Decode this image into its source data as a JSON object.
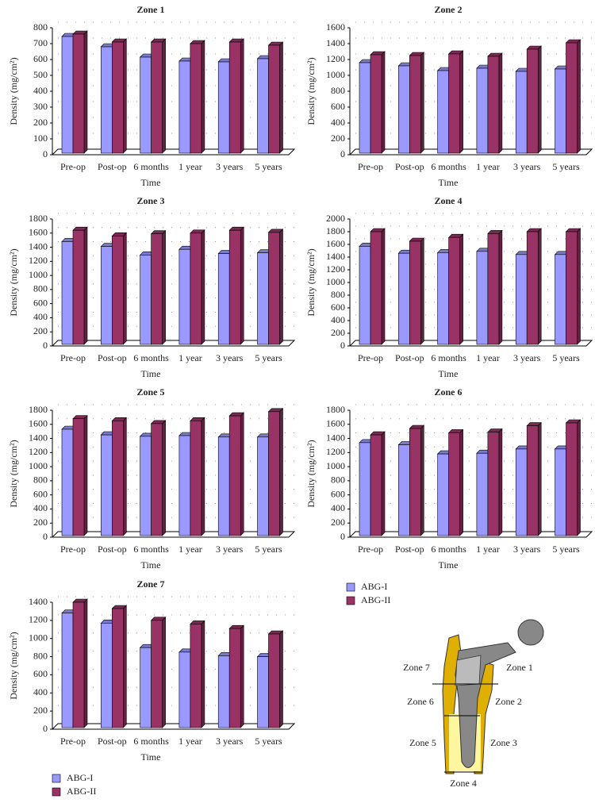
{
  "chart_data": [
    {
      "type": "bar3d",
      "title": "Zone 1",
      "x_label": "Time",
      "y_label": "Density (mg/cm²)",
      "categories": [
        "Pre-op",
        "Post-op",
        "6 months",
        "1 year",
        "3 years",
        "5 years"
      ],
      "series": [
        {
          "name": "ABG-I",
          "color": "#9999ff",
          "values": [
            745,
            680,
            615,
            590,
            585,
            605
          ]
        },
        {
          "name": "ABG-II",
          "color": "#993366",
          "values": [
            760,
            710,
            710,
            700,
            710,
            690
          ]
        }
      ],
      "ylim": [
        0,
        800
      ],
      "yticks": [
        0,
        100,
        200,
        300,
        400,
        500,
        600,
        700,
        800
      ],
      "grid": true
    },
    {
      "type": "bar3d",
      "title": "Zone 2",
      "x_label": "Time",
      "y_label": "Density (mg/cm²)",
      "categories": [
        "Pre-op",
        "Post-op",
        "6 months",
        "1 year",
        "3 years",
        "5 years"
      ],
      "series": [
        {
          "name": "ABG-I",
          "color": "#9999ff",
          "values": [
            1160,
            1120,
            1060,
            1090,
            1050,
            1080
          ]
        },
        {
          "name": "ABG-II",
          "color": "#993366",
          "values": [
            1260,
            1250,
            1270,
            1240,
            1330,
            1410
          ]
        }
      ],
      "ylim": [
        0,
        1600
      ],
      "yticks": [
        0,
        200,
        400,
        600,
        800,
        1000,
        1200,
        1400,
        1600
      ],
      "grid": true
    },
    {
      "type": "bar3d",
      "title": "Zone 3",
      "x_label": "Time",
      "y_label": "Density (mg/cm²)",
      "categories": [
        "Pre-op",
        "Post-op",
        "6 months",
        "1 year",
        "3 years",
        "5 years"
      ],
      "series": [
        {
          "name": "ABG-I",
          "color": "#9999ff",
          "values": [
            1480,
            1410,
            1290,
            1370,
            1310,
            1320
          ]
        },
        {
          "name": "ABG-II",
          "color": "#993366",
          "values": [
            1640,
            1560,
            1590,
            1600,
            1640,
            1610
          ]
        }
      ],
      "ylim": [
        0,
        1800
      ],
      "yticks": [
        0,
        200,
        400,
        600,
        800,
        1000,
        1200,
        1400,
        1600,
        1800
      ],
      "grid": true
    },
    {
      "type": "bar3d",
      "title": "Zone 4",
      "x_label": "Time",
      "y_label": "Density (mg/cm²)",
      "categories": [
        "Pre-op",
        "Post-op",
        "6 months",
        "1 year",
        "3 years",
        "5 years"
      ],
      "series": [
        {
          "name": "ABG-I",
          "color": "#9999ff",
          "values": [
            1570,
            1460,
            1470,
            1490,
            1440,
            1440
          ]
        },
        {
          "name": "ABG-II",
          "color": "#993366",
          "values": [
            1800,
            1650,
            1710,
            1770,
            1800,
            1800
          ]
        }
      ],
      "ylim": [
        0,
        2000
      ],
      "yticks": [
        0,
        200,
        400,
        600,
        800,
        1000,
        1200,
        1400,
        1600,
        1800,
        2000
      ],
      "grid": true
    },
    {
      "type": "bar3d",
      "title": "Zone 5",
      "x_label": "Time",
      "y_label": "Density (mg/cm²)",
      "categories": [
        "Pre-op",
        "Post-op",
        "6 months",
        "1 year",
        "3 years",
        "5 years"
      ],
      "series": [
        {
          "name": "ABG-I",
          "color": "#9999ff",
          "values": [
            1530,
            1450,
            1430,
            1440,
            1420,
            1420
          ]
        },
        {
          "name": "ABG-II",
          "color": "#993366",
          "values": [
            1680,
            1650,
            1610,
            1650,
            1720,
            1780
          ]
        }
      ],
      "ylim": [
        0,
        1800
      ],
      "yticks": [
        0,
        200,
        400,
        600,
        800,
        1000,
        1200,
        1400,
        1600,
        1800
      ],
      "grid": true
    },
    {
      "type": "bar3d",
      "title": "Zone 6",
      "x_label": "Time",
      "y_label": "Density (mg/cm²)",
      "categories": [
        "Pre-op",
        "Post-op",
        "6 months",
        "1 year",
        "3 years",
        "5 years"
      ],
      "series": [
        {
          "name": "ABG-I",
          "color": "#9999ff",
          "values": [
            1340,
            1310,
            1180,
            1190,
            1250,
            1250
          ]
        },
        {
          "name": "ABG-II",
          "color": "#993366",
          "values": [
            1450,
            1540,
            1480,
            1490,
            1580,
            1620
          ]
        }
      ],
      "ylim": [
        0,
        1800
      ],
      "yticks": [
        0,
        200,
        400,
        600,
        800,
        1000,
        1200,
        1400,
        1600,
        1800
      ],
      "grid": true
    },
    {
      "type": "bar3d",
      "title": "Zone 7",
      "x_label": "Time",
      "y_label": "Density (mg/cm²)",
      "categories": [
        "Pre-op",
        "Post-op",
        "6 months",
        "1 year",
        "3 years",
        "5 years"
      ],
      "series": [
        {
          "name": "ABG-I",
          "color": "#9999ff",
          "values": [
            1280,
            1170,
            900,
            850,
            810,
            800
          ]
        },
        {
          "name": "ABG-II",
          "color": "#993366",
          "values": [
            1400,
            1330,
            1200,
            1160,
            1110,
            1050
          ]
        }
      ],
      "ylim": [
        0,
        1400
      ],
      "yticks": [
        0,
        200,
        400,
        600,
        800,
        1000,
        1200,
        1400
      ],
      "grid": true
    }
  ],
  "diagram": {
    "labels": [
      "Zone 7",
      "Zone 1",
      "Zone 6",
      "Zone 2",
      "Zone 5",
      "Zone 3",
      "Zone 4"
    ]
  }
}
